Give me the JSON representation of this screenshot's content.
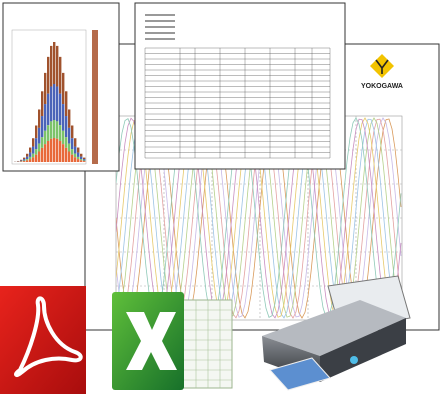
{
  "logo": {
    "brand": "YOKOGAWA"
  }
}
